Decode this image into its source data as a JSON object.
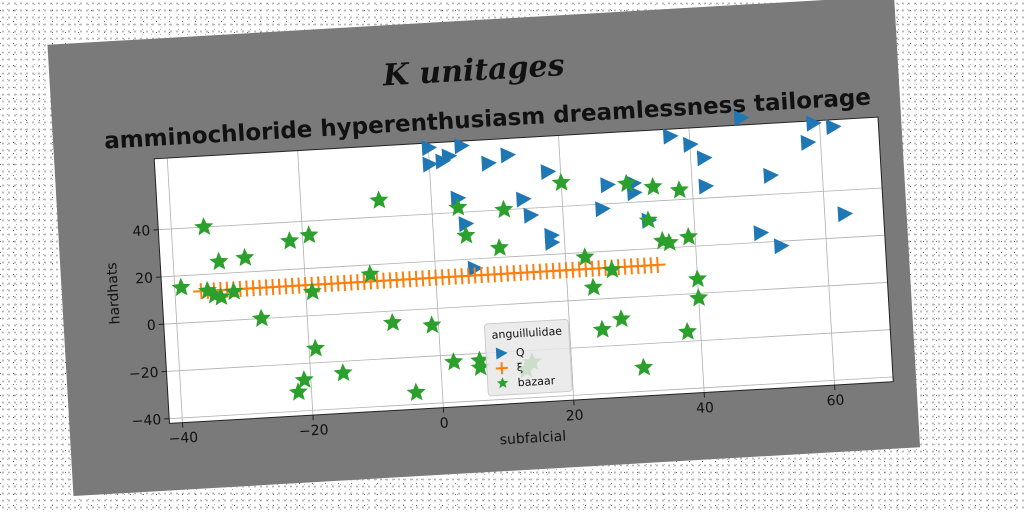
{
  "chart_data": {
    "type": "scatter",
    "suptitle": "K unitages",
    "title": "amminochloride hyperenthusiasm dreamlessness tailorage",
    "xlabel": "subfalcial",
    "ylabel": "hardhats",
    "xlim": [
      -42,
      69
    ],
    "ylim": [
      -42,
      70
    ],
    "xticks": [
      -40,
      -20,
      0,
      20,
      40,
      60
    ],
    "yticks": [
      -40,
      -20,
      0,
      20,
      40
    ],
    "xtick_labels": [
      "−40",
      "−20",
      "0",
      "20",
      "40",
      "60"
    ],
    "ytick_labels": [
      "−40",
      "−20",
      "0",
      "20",
      "40"
    ],
    "grid": true,
    "legend": {
      "title": "anguillulidae",
      "placement": "lower center",
      "entries": [
        "Q",
        "ξ",
        "bazaar"
      ]
    },
    "series": [
      {
        "name": "Q",
        "marker": "triangle-right",
        "color": "#1f77b4",
        "points": [
          [
            0,
            68
          ],
          [
            5,
            68
          ],
          [
            3,
            64
          ],
          [
            0,
            61
          ],
          [
            2,
            62
          ],
          [
            12,
            63
          ],
          [
            9,
            60
          ],
          [
            18,
            55
          ],
          [
            27,
            48
          ],
          [
            4,
            46
          ],
          [
            14,
            44
          ],
          [
            5,
            35
          ],
          [
            15,
            37
          ],
          [
            26,
            38
          ],
          [
            31,
            44
          ],
          [
            31,
            48
          ],
          [
            33,
            32
          ],
          [
            18,
            28
          ],
          [
            18,
            25
          ],
          [
            6,
            16
          ],
          [
            37,
            67
          ],
          [
            40,
            63
          ],
          [
            42,
            57
          ],
          [
            42,
            45
          ],
          [
            48,
            73
          ],
          [
            52,
            48
          ],
          [
            58,
            61
          ],
          [
            59,
            69
          ],
          [
            62,
            67
          ],
          [
            63,
            30
          ],
          [
            50,
            24
          ],
          [
            53,
            18
          ]
        ]
      },
      {
        "name": "ξ",
        "marker": "plus",
        "color": "#ff7f0e",
        "x_from": -36,
        "x_to": 34,
        "x_step": 1,
        "y": 13
      },
      {
        "name": "bazaar",
        "marker": "star",
        "color": "#2ca02c",
        "points": [
          [
            -39,
            15
          ],
          [
            -35,
            13
          ],
          [
            -34,
            11
          ],
          [
            -33,
            10
          ],
          [
            -31,
            12
          ],
          [
            -35,
            40
          ],
          [
            -33,
            25
          ],
          [
            -29,
            26
          ],
          [
            -27,
            0
          ],
          [
            -22,
            32
          ],
          [
            -19,
            34
          ],
          [
            -19,
            10
          ],
          [
            -21,
            -27
          ],
          [
            -22,
            -32
          ],
          [
            -19,
            -14
          ],
          [
            -15,
            -25
          ],
          [
            -8,
            47
          ],
          [
            -10,
            16
          ],
          [
            -7,
            -5
          ],
          [
            -1,
            -7
          ],
          [
            -4,
            -35
          ],
          [
            2,
            -23
          ],
          [
            4,
            42
          ],
          [
            5,
            30
          ],
          [
            6,
            -23
          ],
          [
            6,
            -26
          ],
          [
            10,
            24
          ],
          [
            11,
            40
          ],
          [
            13,
            -28
          ],
          [
            14,
            -25
          ],
          [
            20,
            50
          ],
          [
            23,
            18
          ],
          [
            24,
            5
          ],
          [
            25,
            -13
          ],
          [
            27,
            12
          ],
          [
            28,
            -9
          ],
          [
            30,
            48
          ],
          [
            31,
            -30
          ],
          [
            33,
            32
          ],
          [
            34,
            46
          ],
          [
            35,
            23
          ],
          [
            36,
            22
          ],
          [
            38,
            -16
          ],
          [
            38,
            44
          ],
          [
            39,
            24
          ],
          [
            40,
            6
          ],
          [
            40,
            -2
          ]
        ]
      }
    ]
  }
}
